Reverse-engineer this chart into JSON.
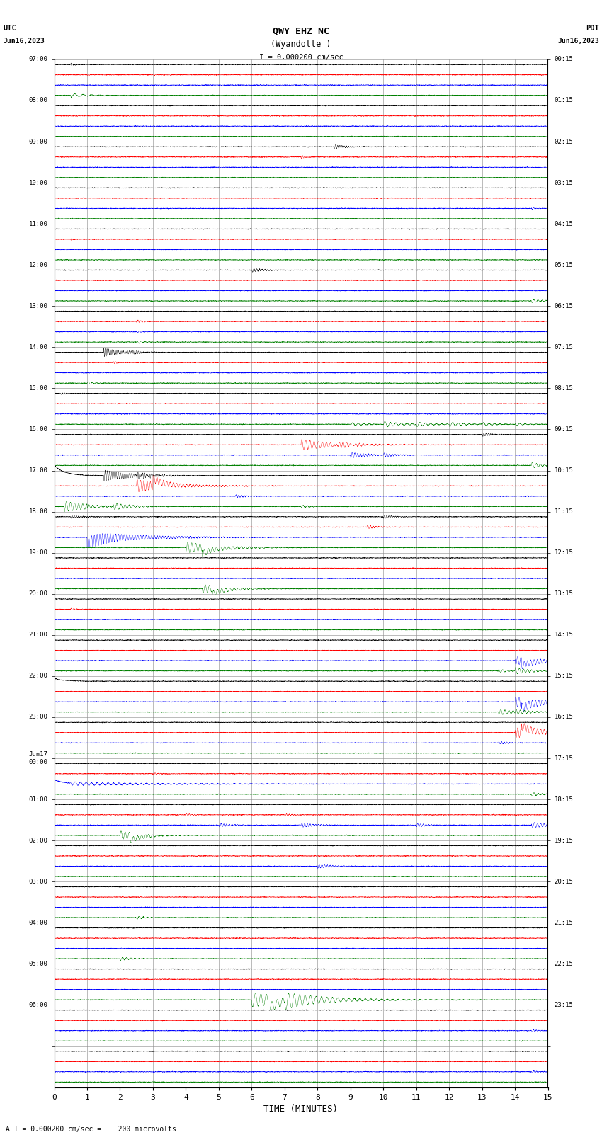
{
  "title_line1": "QWY EHZ NC",
  "title_line2": "(Wyandotte )",
  "scale_label": "I = 0.000200 cm/sec",
  "footer_label": "A I = 0.000200 cm/sec =    200 microvolts",
  "left_header": "UTC",
  "left_date": "Jun16,2023",
  "right_header": "PDT",
  "right_date": "Jun16,2023",
  "xlabel": "TIME (MINUTES)",
  "left_times": [
    "07:00",
    "08:00",
    "09:00",
    "10:00",
    "11:00",
    "12:00",
    "13:00",
    "14:00",
    "15:00",
    "16:00",
    "17:00",
    "18:00",
    "19:00",
    "20:00",
    "21:00",
    "22:00",
    "23:00",
    "Jun17\n00:00",
    "01:00",
    "02:00",
    "03:00",
    "04:00",
    "05:00",
    "06:00",
    ""
  ],
  "right_times": [
    "00:15",
    "01:15",
    "02:15",
    "03:15",
    "04:15",
    "05:15",
    "06:15",
    "07:15",
    "08:15",
    "09:15",
    "10:15",
    "11:15",
    "12:15",
    "13:15",
    "14:15",
    "15:15",
    "16:15",
    "17:15",
    "18:15",
    "19:15",
    "20:15",
    "21:15",
    "22:15",
    "23:15",
    ""
  ],
  "n_rows": 25,
  "n_traces_per_row": 4,
  "minutes_per_row": 15,
  "colors": [
    "black",
    "red",
    "blue",
    "green"
  ],
  "background": "white",
  "grid_color": "#888888",
  "fig_width": 8.5,
  "fig_height": 16.13,
  "dpi": 100,
  "x_ticks": [
    0,
    1,
    2,
    3,
    4,
    5,
    6,
    7,
    8,
    9,
    10,
    11,
    12,
    13,
    14,
    15
  ]
}
